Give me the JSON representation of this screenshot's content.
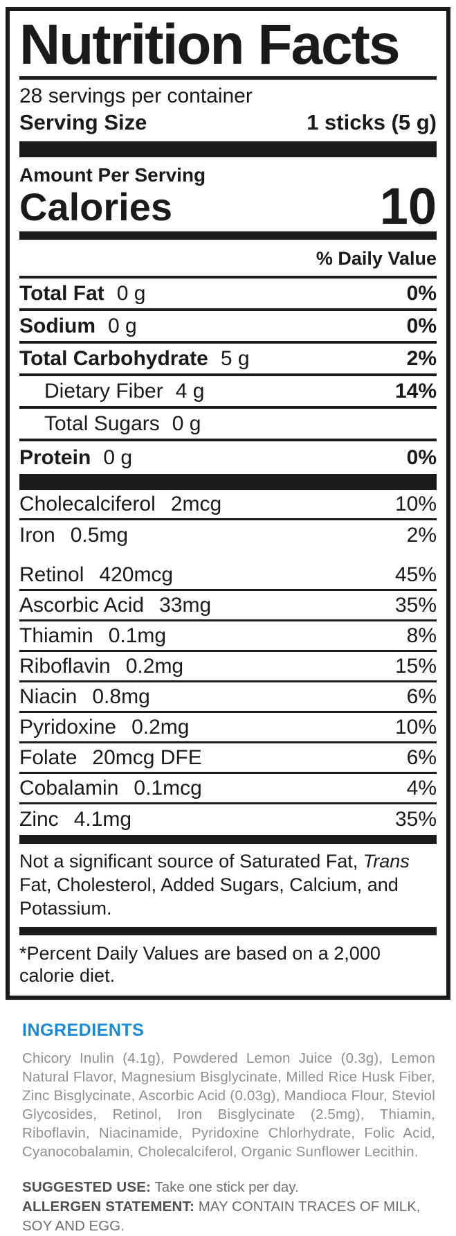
{
  "label": {
    "title": "Nutrition Facts",
    "servings_per_container": "28 servings per container",
    "serving_size_label": "Serving Size",
    "serving_size_value": "1 sticks (5 g)",
    "amount_per_serving": "Amount Per Serving",
    "calories_label": "Calories",
    "calories_value": "10",
    "daily_value_header": "% Daily Value",
    "nutrients": [
      {
        "name": "Total Fat",
        "amount": "0 g",
        "dv": "0%"
      },
      {
        "name": "Sodium",
        "amount": "0 g",
        "dv": "0%"
      },
      {
        "name": "Total Carbohydrate",
        "amount": "5 g",
        "dv": "2%"
      },
      {
        "name": "Dietary Fiber",
        "amount": "4 g",
        "dv": "14%"
      },
      {
        "name": "Total Sugars",
        "amount": "0 g",
        "dv": ""
      },
      {
        "name": "Protein",
        "amount": "0 g",
        "dv": "0%"
      }
    ],
    "micronutrients": [
      {
        "name": "Cholecalciferol",
        "amount": "2mcg",
        "dv": "10%"
      },
      {
        "name": "Iron",
        "amount": "0.5mg",
        "dv": "2%"
      },
      {
        "name": "Retinol",
        "amount": "420mcg",
        "dv": "45%"
      },
      {
        "name": "Ascorbic Acid",
        "amount": "33mg",
        "dv": "35%"
      },
      {
        "name": "Thiamin",
        "amount": "0.1mg",
        "dv": "8%"
      },
      {
        "name": "Riboflavin",
        "amount": "0.2mg",
        "dv": "15%"
      },
      {
        "name": "Niacin",
        "amount": "0.8mg",
        "dv": "6%"
      },
      {
        "name": "Pyridoxine",
        "amount": "0.2mg",
        "dv": "10%"
      },
      {
        "name": "Folate",
        "amount": "20mcg DFE",
        "dv": "6%"
      },
      {
        "name": "Cobalamin",
        "amount": "0.1mcg",
        "dv": "4%"
      },
      {
        "name": "Zinc",
        "amount": "4.1mg",
        "dv": "35%"
      }
    ],
    "not_significant_prefix": "Not a significant source of Saturated Fat, ",
    "not_significant_italic": "Trans",
    "not_significant_suffix": " Fat, Cholesterol, Added Sugars, Calcium, and Potassium.",
    "footnote": "*Percent Daily Values are based on a 2,000 calorie diet."
  },
  "ingredients": {
    "heading": "INGREDIENTS",
    "text": "Chicory Inulin (4.1g), Powdered Lemon Juice (0.3g), Lemon Natural Flavor, Magnesium Bisglycinate, Milled Rice Husk Fiber, Zinc Bisglycinate, Ascorbic Acid (0.03g), Mandioca Flour, Steviol Glycosides, Retinol, Iron Bisglycinate (2.5mg), Thiamin, Riboflavin, Niacinamide, Pyridoxine Chlorhydrate, Folic Acid, Cyanocobalamin, Cholecalciferol, Organic Sunflower Lecithin.",
    "suggested_use_label": "SUGGESTED USE:",
    "suggested_use_text": " Take one stick per day.",
    "allergen_label": "ALLERGEN STATEMENT:",
    "allergen_text": " MAY CONTAIN TRACES OF MILK, SOY AND EGG."
  },
  "colors": {
    "label_black": "#1a1a1a",
    "accent_blue": "#1789D9",
    "body_gray": "#8f8f8f",
    "dark_gray": "#4f4f4f"
  }
}
